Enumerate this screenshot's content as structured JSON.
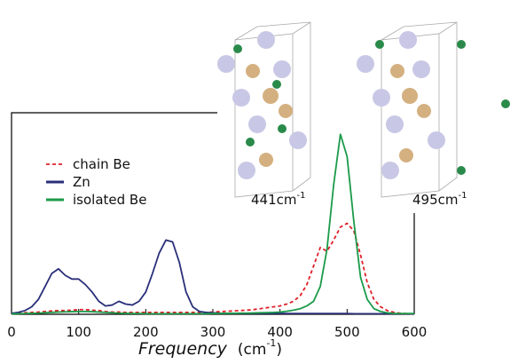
{
  "chart_data": {
    "type": "line",
    "xlabel": "Frequency",
    "xlabel_unit": "(cm",
    "xlabel_unit_sup": "-1",
    "xlabel_unit_end": ")",
    "annotations": [
      {
        "text": "441cm",
        "sup": "-1"
      },
      {
        "text": "495cm",
        "sup": "-1"
      }
    ],
    "x": [
      0,
      10,
      20,
      30,
      40,
      50,
      60,
      70,
      80,
      90,
      100,
      110,
      120,
      130,
      140,
      150,
      160,
      170,
      180,
      190,
      200,
      210,
      220,
      230,
      240,
      250,
      260,
      270,
      280,
      290,
      300,
      310,
      320,
      330,
      340,
      350,
      360,
      370,
      380,
      390,
      400,
      410,
      420,
      430,
      440,
      450,
      460,
      470,
      480,
      490,
      500,
      510,
      520,
      530,
      540,
      550,
      560,
      570,
      580,
      590,
      600
    ],
    "xlim": [
      0,
      600
    ],
    "xticks": [
      0,
      100,
      200,
      300,
      400,
      500,
      600
    ],
    "ylim": [
      0,
      1
    ],
    "series": [
      {
        "name": "chain Be",
        "color": "#e0202a",
        "dashed": true,
        "values": [
          0.005,
          0.006,
          0.008,
          0.01,
          0.012,
          0.015,
          0.018,
          0.02,
          0.02,
          0.022,
          0.025,
          0.025,
          0.022,
          0.02,
          0.015,
          0.012,
          0.012,
          0.01,
          0.01,
          0.01,
          0.01,
          0.01,
          0.01,
          0.01,
          0.01,
          0.01,
          0.01,
          0.01,
          0.01,
          0.01,
          0.012,
          0.014,
          0.016,
          0.018,
          0.02,
          0.022,
          0.025,
          0.03,
          0.035,
          0.04,
          0.045,
          0.055,
          0.07,
          0.1,
          0.16,
          0.26,
          0.36,
          0.34,
          0.4,
          0.47,
          0.49,
          0.45,
          0.32,
          0.17,
          0.08,
          0.04,
          0.02,
          0.01,
          0.005,
          0.003,
          0.002
        ]
      },
      {
        "name": "Zn",
        "color": "#2a2f7a",
        "dashed": false,
        "values": [
          0.005,
          0.01,
          0.02,
          0.04,
          0.08,
          0.15,
          0.22,
          0.245,
          0.21,
          0.19,
          0.19,
          0.16,
          0.12,
          0.07,
          0.045,
          0.05,
          0.07,
          0.055,
          0.05,
          0.07,
          0.12,
          0.22,
          0.33,
          0.4,
          0.39,
          0.28,
          0.12,
          0.04,
          0.015,
          0.01,
          0.008,
          0.005,
          0.005,
          0.005,
          0.005,
          0.005,
          0.005,
          0.005,
          0.005,
          0.005,
          0.005,
          0.004,
          0.004,
          0.004,
          0.004,
          0.004,
          0.004,
          0.004,
          0.004,
          0.004,
          0.004,
          0.003,
          0.003,
          0.003,
          0.003,
          0.003,
          0.003,
          0.003,
          0.003,
          0.003,
          0.002
        ]
      },
      {
        "name": "isolated Be",
        "color": "#1a9a48",
        "dashed": false,
        "values": [
          0.002,
          0.003,
          0.004,
          0.005,
          0.006,
          0.008,
          0.01,
          0.012,
          0.013,
          0.014,
          0.015,
          0.015,
          0.014,
          0.012,
          0.01,
          0.008,
          0.006,
          0.005,
          0.004,
          0.004,
          0.003,
          0.003,
          0.003,
          0.003,
          0.003,
          0.003,
          0.003,
          0.003,
          0.003,
          0.003,
          0.004,
          0.004,
          0.005,
          0.005,
          0.006,
          0.006,
          0.007,
          0.008,
          0.009,
          0.01,
          0.012,
          0.016,
          0.022,
          0.03,
          0.045,
          0.07,
          0.15,
          0.35,
          0.7,
          0.97,
          0.85,
          0.5,
          0.2,
          0.08,
          0.03,
          0.015,
          0.008,
          0.004,
          0.004,
          0.004,
          0.004
        ]
      }
    ]
  }
}
